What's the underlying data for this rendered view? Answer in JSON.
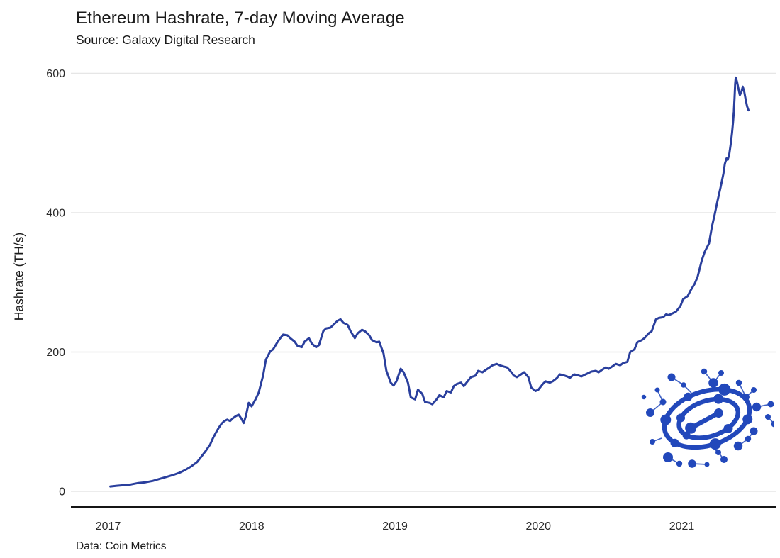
{
  "header": {
    "title": "Ethereum Hashrate, 7-day Moving Average",
    "subtitle": "Source: Galaxy Digital Research"
  },
  "footer": {
    "credit": "Data: Coin Metrics"
  },
  "colors": {
    "line": "#2a3f9d",
    "logo": "#2248bb",
    "grid": "#e6e6e6",
    "axis": "#151515",
    "text": "#1a1a1a"
  },
  "logo": {
    "name": "galaxy-digital-network-globe-logo"
  },
  "chart_data": {
    "type": "line",
    "title": "Ethereum Hashrate, 7-day Moving Average",
    "subtitle": "Source: Galaxy Digital Research",
    "data_credit": "Data: Coin Metrics",
    "xlabel": "",
    "ylabel": "Hashrate (TH/s)",
    "xlim": [
      2016.74,
      2021.66
    ],
    "ylim": [
      0,
      600
    ],
    "x_ticks": [
      2017,
      2018,
      2019,
      2020,
      2021
    ],
    "y_ticks": [
      0,
      200,
      400,
      600
    ],
    "grid": "horizontal-only",
    "legend": "none",
    "series": [
      {
        "name": "ETH hashrate 7-day moving average (TH/s)",
        "points": [
          [
            2017.015,
            7
          ],
          [
            2017.06,
            8
          ],
          [
            2017.11,
            9
          ],
          [
            2017.16,
            10
          ],
          [
            2017.21,
            12
          ],
          [
            2017.26,
            13
          ],
          [
            2017.31,
            15
          ],
          [
            2017.36,
            18
          ],
          [
            2017.41,
            21
          ],
          [
            2017.46,
            24
          ],
          [
            2017.5,
            27
          ],
          [
            2017.54,
            31
          ],
          [
            2017.58,
            36
          ],
          [
            2017.62,
            42
          ],
          [
            2017.65,
            50
          ],
          [
            2017.68,
            58
          ],
          [
            2017.71,
            67
          ],
          [
            2017.73,
            76
          ],
          [
            2017.75,
            84
          ],
          [
            2017.77,
            91
          ],
          [
            2017.79,
            97
          ],
          [
            2017.81,
            101
          ],
          [
            2017.83,
            103
          ],
          [
            2017.85,
            101
          ],
          [
            2017.87,
            105
          ],
          [
            2017.89,
            108
          ],
          [
            2017.91,
            110
          ],
          [
            2017.93,
            104
          ],
          [
            2017.945,
            98
          ],
          [
            2017.96,
            108
          ],
          [
            2017.98,
            127
          ],
          [
            2018.0,
            122
          ],
          [
            2018.03,
            133
          ],
          [
            2018.05,
            142
          ],
          [
            2018.08,
            166
          ],
          [
            2018.1,
            189
          ],
          [
            2018.13,
            201
          ],
          [
            2018.15,
            204
          ],
          [
            2018.18,
            214
          ],
          [
            2018.2,
            220
          ],
          [
            2018.22,
            225
          ],
          [
            2018.25,
            224
          ],
          [
            2018.27,
            220
          ],
          [
            2018.3,
            215
          ],
          [
            2018.32,
            209
          ],
          [
            2018.35,
            207
          ],
          [
            2018.37,
            215
          ],
          [
            2018.4,
            220
          ],
          [
            2018.42,
            212
          ],
          [
            2018.45,
            207
          ],
          [
            2018.47,
            210
          ],
          [
            2018.5,
            230
          ],
          [
            2018.52,
            234
          ],
          [
            2018.55,
            235
          ],
          [
            2018.57,
            239
          ],
          [
            2018.6,
            245
          ],
          [
            2018.62,
            247
          ],
          [
            2018.64,
            242
          ],
          [
            2018.67,
            239
          ],
          [
            2018.69,
            230
          ],
          [
            2018.72,
            220
          ],
          [
            2018.74,
            227
          ],
          [
            2018.77,
            232
          ],
          [
            2018.79,
            230
          ],
          [
            2018.82,
            224
          ],
          [
            2018.84,
            217
          ],
          [
            2018.87,
            214
          ],
          [
            2018.89,
            215
          ],
          [
            2018.92,
            198
          ],
          [
            2018.94,
            173
          ],
          [
            2018.97,
            156
          ],
          [
            2018.99,
            152
          ],
          [
            2019.01,
            158
          ],
          [
            2019.04,
            176
          ],
          [
            2019.06,
            171
          ],
          [
            2019.09,
            156
          ],
          [
            2019.11,
            135
          ],
          [
            2019.14,
            132
          ],
          [
            2019.16,
            146
          ],
          [
            2019.19,
            140
          ],
          [
            2019.21,
            128
          ],
          [
            2019.24,
            127
          ],
          [
            2019.26,
            125
          ],
          [
            2019.29,
            132
          ],
          [
            2019.31,
            138
          ],
          [
            2019.34,
            135
          ],
          [
            2019.36,
            144
          ],
          [
            2019.39,
            142
          ],
          [
            2019.41,
            151
          ],
          [
            2019.43,
            154
          ],
          [
            2019.46,
            156
          ],
          [
            2019.48,
            151
          ],
          [
            2019.51,
            159
          ],
          [
            2019.53,
            164
          ],
          [
            2019.56,
            166
          ],
          [
            2019.58,
            173
          ],
          [
            2019.61,
            171
          ],
          [
            2019.63,
            174
          ],
          [
            2019.66,
            178
          ],
          [
            2019.68,
            181
          ],
          [
            2019.71,
            183
          ],
          [
            2019.73,
            181
          ],
          [
            2019.76,
            179
          ],
          [
            2019.78,
            178
          ],
          [
            2019.8,
            174
          ],
          [
            2019.83,
            166
          ],
          [
            2019.85,
            164
          ],
          [
            2019.88,
            168
          ],
          [
            2019.9,
            171
          ],
          [
            2019.93,
            164
          ],
          [
            2019.95,
            149
          ],
          [
            2019.98,
            144
          ],
          [
            2020.0,
            146
          ],
          [
            2020.03,
            154
          ],
          [
            2020.05,
            158
          ],
          [
            2020.08,
            156
          ],
          [
            2020.1,
            158
          ],
          [
            2020.13,
            163
          ],
          [
            2020.15,
            168
          ],
          [
            2020.17,
            167
          ],
          [
            2020.2,
            165
          ],
          [
            2020.22,
            163
          ],
          [
            2020.25,
            168
          ],
          [
            2020.27,
            167
          ],
          [
            2020.3,
            165
          ],
          [
            2020.32,
            167
          ],
          [
            2020.35,
            170
          ],
          [
            2020.37,
            172
          ],
          [
            2020.4,
            173
          ],
          [
            2020.42,
            171
          ],
          [
            2020.44,
            174
          ],
          [
            2020.47,
            178
          ],
          [
            2020.49,
            176
          ],
          [
            2020.52,
            180
          ],
          [
            2020.54,
            183
          ],
          [
            2020.57,
            181
          ],
          [
            2020.59,
            184
          ],
          [
            2020.62,
            186
          ],
          [
            2020.64,
            200
          ],
          [
            2020.67,
            204
          ],
          [
            2020.69,
            214
          ],
          [
            2020.72,
            217
          ],
          [
            2020.74,
            220
          ],
          [
            2020.77,
            227
          ],
          [
            2020.79,
            230
          ],
          [
            2020.82,
            247
          ],
          [
            2020.84,
            249
          ],
          [
            2020.87,
            250
          ],
          [
            2020.89,
            254
          ],
          [
            2020.91,
            253
          ],
          [
            2020.94,
            256
          ],
          [
            2020.96,
            258
          ],
          [
            2020.99,
            266
          ],
          [
            2021.01,
            276
          ],
          [
            2021.04,
            280
          ],
          [
            2021.06,
            288
          ],
          [
            2021.09,
            298
          ],
          [
            2021.11,
            308
          ],
          [
            2021.14,
            332
          ],
          [
            2021.16,
            344
          ],
          [
            2021.19,
            356
          ],
          [
            2021.21,
            380
          ],
          [
            2021.23,
            398
          ],
          [
            2021.25,
            418
          ],
          [
            2021.27,
            436
          ],
          [
            2021.29,
            456
          ],
          [
            2021.3,
            470
          ],
          [
            2021.312,
            478
          ],
          [
            2021.32,
            476
          ],
          [
            2021.33,
            483
          ],
          [
            2021.34,
            497
          ],
          [
            2021.35,
            514
          ],
          [
            2021.357,
            529
          ],
          [
            2021.363,
            545
          ],
          [
            2021.368,
            565
          ],
          [
            2021.372,
            585
          ],
          [
            2021.376,
            594
          ],
          [
            2021.385,
            588
          ],
          [
            2021.395,
            578
          ],
          [
            2021.405,
            569
          ],
          [
            2021.415,
            573
          ],
          [
            2021.425,
            581
          ],
          [
            2021.435,
            574
          ],
          [
            2021.445,
            563
          ],
          [
            2021.455,
            553
          ],
          [
            2021.465,
            547
          ]
        ]
      }
    ]
  }
}
